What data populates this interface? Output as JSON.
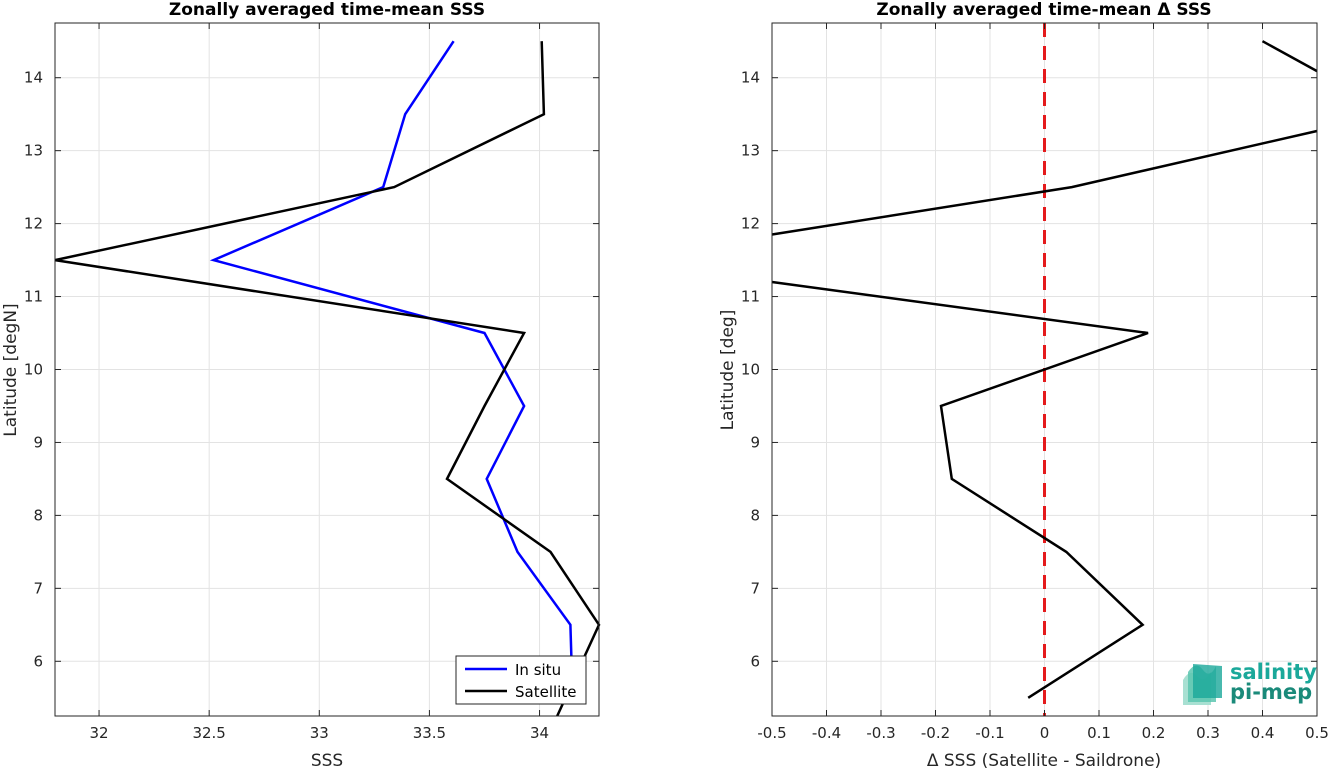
{
  "chart_data": [
    {
      "type": "line",
      "title": "Zonally averaged time-mean SSS",
      "xlabel": "SSS",
      "ylabel": "Latitude [degN]",
      "xlim": [
        31.8,
        34.27
      ],
      "ylim": [
        5.25,
        14.75
      ],
      "xticks": [
        "32",
        "32.5",
        "33",
        "33.5",
        "34"
      ],
      "yticks": [
        "6",
        "7",
        "8",
        "9",
        "10",
        "11",
        "12",
        "13",
        "14"
      ],
      "grid": true,
      "legend": "bottom-right",
      "series": [
        {
          "name": "In situ",
          "color": "#0000ff",
          "points": [
            [
              34.15,
              5.5
            ],
            [
              34.14,
              6.5
            ],
            [
              33.9,
              7.5
            ],
            [
              33.76,
              8.5
            ],
            [
              33.93,
              9.5
            ],
            [
              33.75,
              10.5
            ],
            [
              32.52,
              11.5
            ],
            [
              33.29,
              12.5
            ],
            [
              33.39,
              13.5
            ],
            [
              33.61,
              14.5
            ]
          ]
        },
        {
          "name": "Satellite",
          "color": "#000000",
          "points": [
            [
              34.08,
              5.25
            ],
            [
              34.27,
              6.5
            ],
            [
              34.05,
              7.5
            ],
            [
              33.58,
              8.5
            ],
            [
              33.75,
              9.5
            ],
            [
              33.93,
              10.5
            ],
            [
              31.8,
              11.5
            ],
            [
              33.34,
              12.5
            ],
            [
              34.02,
              13.5
            ],
            [
              34.01,
              14.5
            ]
          ]
        }
      ]
    },
    {
      "type": "line",
      "title": "Zonally averaged time-mean Δ SSS",
      "xlabel": "Δ SSS (Satellite - Saildrone)",
      "ylabel": "Latitude [deg]",
      "xlim": [
        -0.5,
        0.5
      ],
      "ylim": [
        5.25,
        14.75
      ],
      "xticks": [
        "-0.5",
        "-0.4",
        "-0.3",
        "-0.2",
        "-0.1",
        "0",
        "0.1",
        "0.2",
        "0.3",
        "0.4",
        "0.5"
      ],
      "yticks": [
        "6",
        "7",
        "8",
        "9",
        "10",
        "11",
        "12",
        "13",
        "14"
      ],
      "grid": true,
      "reference_line": {
        "x": 0,
        "color": "#e41a1c",
        "style": "dashed"
      },
      "series": [
        {
          "color": "#000000",
          "points": [
            [
              -0.03,
              5.5
            ],
            [
              0.18,
              6.5
            ],
            [
              0.04,
              7.5
            ],
            [
              -0.17,
              8.5
            ],
            [
              -0.19,
              9.5
            ],
            [
              0.19,
              10.5
            ],
            [
              -0.5,
              11.2
            ]
          ]
        },
        {
          "color": "#000000",
          "points": [
            [
              -0.5,
              11.85
            ],
            [
              0.05,
              12.5
            ],
            [
              0.5,
              13.27
            ]
          ]
        },
        {
          "color": "#000000",
          "points": [
            [
              0.4,
              14.5
            ],
            [
              0.5,
              14.09
            ]
          ]
        }
      ]
    }
  ],
  "logo": {
    "line1": "salinity",
    "line2": "pi-mep",
    "color": "#1aa89a"
  }
}
